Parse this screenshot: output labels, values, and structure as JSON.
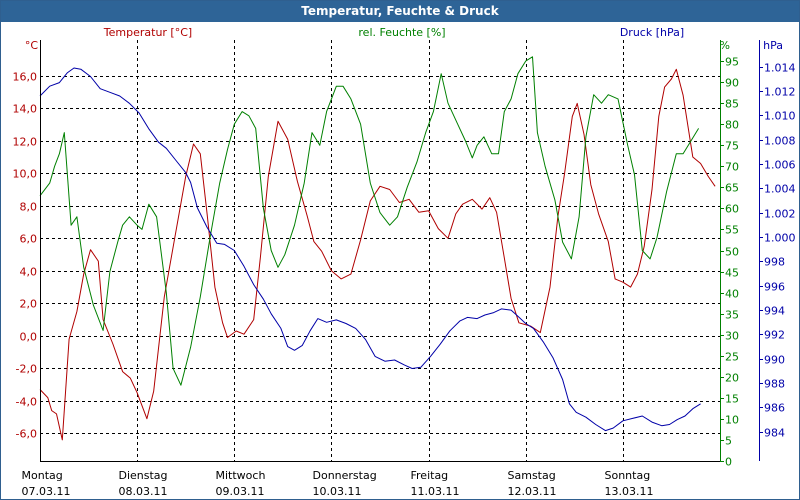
{
  "window": {
    "title": "Temperatur, Feuchte & Druck"
  },
  "colors": {
    "temperature": "#b00000",
    "humidity": "#008000",
    "pressure": "#0000a8",
    "grid": "#000000",
    "text": "#000000"
  },
  "chart_data": {
    "type": "line",
    "title": "Temperatur, Feuchte & Druck",
    "grid": true,
    "axes": {
      "temperature": {
        "label": "Temperatur [°C]",
        "unit": "°C",
        "range": [
          -7.7,
          18.2
        ],
        "ticks": [
          "16,0",
          "14,0",
          "12,0",
          "10,0",
          "8,0",
          "6,0",
          "4,0",
          "2,0",
          "0,0",
          "-2,0",
          "-4,0",
          "-6,0"
        ],
        "tick_values": [
          16,
          14,
          12,
          10,
          8,
          6,
          4,
          2,
          0,
          -2,
          -4,
          -6
        ]
      },
      "humidity": {
        "label": "rel. Feuchte [%]",
        "unit": "%",
        "range": [
          0,
          100
        ],
        "ticks": [
          "95",
          "90",
          "85",
          "80",
          "75",
          "70",
          "65",
          "60",
          "55",
          "50",
          "45",
          "40",
          "35",
          "30",
          "25",
          "20",
          "15",
          "10",
          "5",
          "0"
        ],
        "tick_values": [
          95,
          90,
          85,
          80,
          75,
          70,
          65,
          60,
          55,
          50,
          45,
          40,
          35,
          30,
          25,
          20,
          15,
          10,
          5,
          0
        ]
      },
      "pressure": {
        "label": "Druck [hPa]",
        "unit": "hPa",
        "range": [
          981.6,
          1016.2
        ],
        "ticks": [
          "1.014",
          "1.012",
          "1.010",
          "1.008",
          "1.006",
          "1.004",
          "1.002",
          "1.000",
          "998",
          "996",
          "994",
          "992",
          "990",
          "988",
          "986",
          "984"
        ],
        "tick_values": [
          1014,
          1012,
          1010,
          1008,
          1006,
          1004,
          1002,
          1000,
          998,
          996,
          994,
          992,
          990,
          988,
          986,
          984
        ]
      }
    },
    "x_range": [
      0,
      7.0
    ],
    "x_ticks": [
      {
        "day": "Montag",
        "date": "07.03.11"
      },
      {
        "day": "Dienstag",
        "date": "08.03.11"
      },
      {
        "day": "Mittwoch",
        "date": "09.03.11"
      },
      {
        "day": "Donnerstag",
        "date": "10.03.11"
      },
      {
        "day": "Freitag",
        "date": "11.03.11"
      },
      {
        "day": "Samstag",
        "date": "12.03.11"
      },
      {
        "day": "Sonntag",
        "date": "13.03.11"
      }
    ],
    "series": [
      {
        "name": "Temperatur [°C]",
        "axis": "temperature",
        "points": [
          [
            0,
            -3.3
          ],
          [
            0.08,
            -3.8
          ],
          [
            0.12,
            -4.6
          ],
          [
            0.17,
            -4.8
          ],
          [
            0.23,
            -6.4
          ],
          [
            0.3,
            -0.2
          ],
          [
            0.38,
            1.5
          ],
          [
            0.45,
            3.8
          ],
          [
            0.52,
            5.3
          ],
          [
            0.6,
            4.6
          ],
          [
            0.65,
            1.0
          ],
          [
            0.75,
            -0.5
          ],
          [
            0.85,
            -2.2
          ],
          [
            0.93,
            -2.6
          ],
          [
            1.0,
            -3.5
          ],
          [
            1.1,
            -5.1
          ],
          [
            1.17,
            -3.4
          ],
          [
            1.28,
            2.4
          ],
          [
            1.38,
            5.8
          ],
          [
            1.5,
            9.8
          ],
          [
            1.58,
            11.8
          ],
          [
            1.65,
            11.2
          ],
          [
            1.72,
            7.5
          ],
          [
            1.8,
            3.0
          ],
          [
            1.88,
            0.8
          ],
          [
            1.93,
            -0.1
          ],
          [
            2.02,
            0.3
          ],
          [
            2.1,
            0.1
          ],
          [
            2.2,
            1.0
          ],
          [
            2.27,
            4.9
          ],
          [
            2.35,
            9.8
          ],
          [
            2.45,
            13.2
          ],
          [
            2.55,
            12.1
          ],
          [
            2.65,
            9.5
          ],
          [
            2.75,
            7.4
          ],
          [
            2.82,
            5.8
          ],
          [
            2.9,
            5.2
          ],
          [
            3.0,
            4.0
          ],
          [
            3.1,
            3.5
          ],
          [
            3.2,
            3.8
          ],
          [
            3.3,
            5.9
          ],
          [
            3.4,
            8.3
          ],
          [
            3.5,
            9.2
          ],
          [
            3.6,
            9.0
          ],
          [
            3.7,
            8.2
          ],
          [
            3.8,
            8.4
          ],
          [
            3.9,
            7.6
          ],
          [
            4.0,
            7.7
          ],
          [
            4.1,
            6.6
          ],
          [
            4.2,
            6.0
          ],
          [
            4.28,
            7.5
          ],
          [
            4.35,
            8.1
          ],
          [
            4.45,
            8.4
          ],
          [
            4.55,
            7.8
          ],
          [
            4.63,
            8.5
          ],
          [
            4.7,
            7.6
          ],
          [
            4.78,
            4.8
          ],
          [
            4.85,
            2.3
          ],
          [
            4.93,
            0.8
          ],
          [
            5.05,
            0.6
          ],
          [
            5.15,
            0.2
          ],
          [
            5.25,
            3.0
          ],
          [
            5.33,
            7.3
          ],
          [
            5.4,
            10.0
          ],
          [
            5.48,
            13.5
          ],
          [
            5.53,
            14.3
          ],
          [
            5.6,
            12.4
          ],
          [
            5.67,
            9.3
          ],
          [
            5.75,
            7.5
          ],
          [
            5.85,
            5.8
          ],
          [
            5.92,
            3.5
          ],
          [
            6.0,
            3.3
          ],
          [
            6.08,
            3.0
          ],
          [
            6.15,
            3.8
          ],
          [
            6.22,
            5.5
          ],
          [
            6.3,
            9.0
          ],
          [
            6.37,
            13.5
          ],
          [
            6.43,
            15.3
          ],
          [
            6.5,
            15.8
          ],
          [
            6.55,
            16.4
          ],
          [
            6.62,
            14.8
          ],
          [
            6.72,
            11.0
          ],
          [
            6.8,
            10.6
          ],
          [
            6.88,
            9.8
          ],
          [
            6.95,
            9.2
          ]
        ]
      },
      {
        "name": "rel. Feuchte [%]",
        "axis": "humidity",
        "points": [
          [
            0,
            63
          ],
          [
            0.1,
            66
          ],
          [
            0.15,
            70
          ],
          [
            0.2,
            73
          ],
          [
            0.25,
            78
          ],
          [
            0.32,
            56
          ],
          [
            0.38,
            58
          ],
          [
            0.45,
            46
          ],
          [
            0.55,
            37
          ],
          [
            0.65,
            31
          ],
          [
            0.72,
            45
          ],
          [
            0.8,
            52
          ],
          [
            0.85,
            56
          ],
          [
            0.92,
            58
          ],
          [
            1.0,
            56
          ],
          [
            1.05,
            55
          ],
          [
            1.12,
            61
          ],
          [
            1.2,
            58
          ],
          [
            1.3,
            40
          ],
          [
            1.37,
            22
          ],
          [
            1.45,
            18
          ],
          [
            1.55,
            27
          ],
          [
            1.65,
            39
          ],
          [
            1.75,
            53
          ],
          [
            1.85,
            66
          ],
          [
            1.93,
            74
          ],
          [
            2.0,
            80
          ],
          [
            2.08,
            83
          ],
          [
            2.15,
            82
          ],
          [
            2.22,
            79
          ],
          [
            2.3,
            60
          ],
          [
            2.38,
            50
          ],
          [
            2.45,
            46
          ],
          [
            2.52,
            49
          ],
          [
            2.62,
            56
          ],
          [
            2.72,
            66
          ],
          [
            2.8,
            78
          ],
          [
            2.88,
            75
          ],
          [
            2.95,
            83
          ],
          [
            3.05,
            89
          ],
          [
            3.12,
            89
          ],
          [
            3.2,
            86
          ],
          [
            3.3,
            80
          ],
          [
            3.4,
            66
          ],
          [
            3.5,
            59
          ],
          [
            3.6,
            56
          ],
          [
            3.68,
            58
          ],
          [
            3.78,
            65
          ],
          [
            3.88,
            71
          ],
          [
            3.97,
            78
          ],
          [
            4.05,
            83
          ],
          [
            4.13,
            92
          ],
          [
            4.2,
            85
          ],
          [
            4.3,
            80
          ],
          [
            4.38,
            76
          ],
          [
            4.45,
            72
          ],
          [
            4.5,
            75
          ],
          [
            4.57,
            77
          ],
          [
            4.65,
            73
          ],
          [
            4.72,
            73
          ],
          [
            4.78,
            83
          ],
          [
            4.85,
            86
          ],
          [
            4.92,
            92
          ],
          [
            5.0,
            95
          ],
          [
            5.07,
            96
          ],
          [
            5.12,
            78
          ],
          [
            5.2,
            70
          ],
          [
            5.3,
            62
          ],
          [
            5.38,
            52
          ],
          [
            5.47,
            48
          ],
          [
            5.55,
            58
          ],
          [
            5.62,
            77
          ],
          [
            5.7,
            87
          ],
          [
            5.78,
            85
          ],
          [
            5.85,
            87
          ],
          [
            5.95,
            86
          ],
          [
            6.05,
            75
          ],
          [
            6.12,
            68
          ],
          [
            6.2,
            50
          ],
          [
            6.28,
            48
          ],
          [
            6.35,
            53
          ],
          [
            6.45,
            64
          ],
          [
            6.55,
            73
          ],
          [
            6.62,
            73
          ],
          [
            6.7,
            76
          ],
          [
            6.78,
            79
          ]
        ]
      },
      {
        "name": "Druck [hPa]",
        "axis": "pressure",
        "points": [
          [
            0,
            1011.6
          ],
          [
            0.1,
            1012.4
          ],
          [
            0.2,
            1012.7
          ],
          [
            0.28,
            1013.5
          ],
          [
            0.35,
            1013.9
          ],
          [
            0.42,
            1013.8
          ],
          [
            0.52,
            1013.2
          ],
          [
            0.62,
            1012.2
          ],
          [
            0.72,
            1011.9
          ],
          [
            0.82,
            1011.6
          ],
          [
            0.92,
            1011.0
          ],
          [
            1.02,
            1010.2
          ],
          [
            1.12,
            1008.9
          ],
          [
            1.22,
            1007.8
          ],
          [
            1.3,
            1007.3
          ],
          [
            1.4,
            1006.3
          ],
          [
            1.5,
            1005.3
          ],
          [
            1.55,
            1004.5
          ],
          [
            1.62,
            1002.4
          ],
          [
            1.72,
            1000.8
          ],
          [
            1.82,
            999.5
          ],
          [
            1.9,
            999.4
          ],
          [
            2.0,
            998.9
          ],
          [
            2.1,
            997.6
          ],
          [
            2.2,
            996.1
          ],
          [
            2.3,
            994.9
          ],
          [
            2.38,
            993.7
          ],
          [
            2.48,
            992.5
          ],
          [
            2.55,
            991.0
          ],
          [
            2.62,
            990.7
          ],
          [
            2.7,
            991.1
          ],
          [
            2.78,
            992.3
          ],
          [
            2.86,
            993.3
          ],
          [
            2.95,
            993.0
          ],
          [
            3.05,
            993.2
          ],
          [
            3.15,
            992.9
          ],
          [
            3.25,
            992.5
          ],
          [
            3.35,
            991.6
          ],
          [
            3.45,
            990.2
          ],
          [
            3.55,
            989.8
          ],
          [
            3.65,
            989.9
          ],
          [
            3.75,
            989.5
          ],
          [
            3.83,
            989.2
          ],
          [
            3.92,
            989.3
          ],
          [
            4.02,
            990.2
          ],
          [
            4.12,
            991.2
          ],
          [
            4.22,
            992.3
          ],
          [
            4.32,
            993.1
          ],
          [
            4.4,
            993.4
          ],
          [
            4.5,
            993.3
          ],
          [
            4.58,
            993.6
          ],
          [
            4.67,
            993.8
          ],
          [
            4.75,
            994.1
          ],
          [
            4.85,
            994.0
          ],
          [
            4.92,
            993.5
          ],
          [
            5.0,
            992.9
          ],
          [
            5.08,
            992.5
          ],
          [
            5.18,
            991.4
          ],
          [
            5.28,
            990.1
          ],
          [
            5.38,
            988.3
          ],
          [
            5.45,
            986.3
          ],
          [
            5.52,
            985.6
          ],
          [
            5.62,
            985.2
          ],
          [
            5.72,
            984.6
          ],
          [
            5.82,
            984.1
          ],
          [
            5.9,
            984.3
          ],
          [
            6.0,
            984.9
          ],
          [
            6.1,
            985.1
          ],
          [
            6.2,
            985.3
          ],
          [
            6.3,
            984.8
          ],
          [
            6.4,
            984.5
          ],
          [
            6.48,
            984.6
          ],
          [
            6.56,
            985.0
          ],
          [
            6.64,
            985.3
          ],
          [
            6.72,
            985.9
          ],
          [
            6.8,
            986.3
          ]
        ]
      }
    ]
  }
}
